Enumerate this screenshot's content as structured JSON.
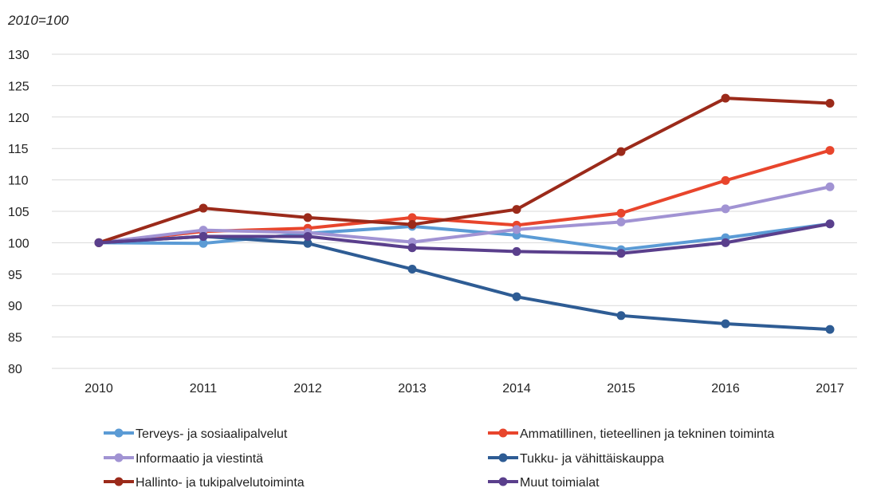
{
  "chart_data": {
    "type": "line",
    "unit_label": "2010=100",
    "x": [
      "2010",
      "2011",
      "2012",
      "2013",
      "2014",
      "2015",
      "2016",
      "2017"
    ],
    "ylim": [
      80,
      130
    ],
    "yticks": [
      80,
      85,
      90,
      95,
      100,
      105,
      110,
      115,
      120,
      125,
      130
    ],
    "grid": "horizontal",
    "legend_position": "bottom",
    "series": [
      {
        "name": "Terveys- ja sosiaalipalvelut",
        "color": "#5B9BD5",
        "values": [
          100,
          99.9,
          101.5,
          102.6,
          101.2,
          98.9,
          100.8,
          103.0
        ]
      },
      {
        "name": "Ammatillinen, tieteellinen ja tekninen toiminta",
        "color": "#E8452C",
        "values": [
          100,
          101.8,
          102.3,
          104.0,
          102.8,
          104.7,
          109.9,
          114.7
        ]
      },
      {
        "name": "Informaatio ja viestintä",
        "color": "#A193D3",
        "values": [
          100,
          102.0,
          101.6,
          100.1,
          102.1,
          103.3,
          105.4,
          108.9
        ]
      },
      {
        "name": "Tukku- ja vähittäiskauppa",
        "color": "#2E5C94",
        "values": [
          100,
          101.0,
          99.9,
          95.8,
          91.4,
          88.4,
          87.1,
          86.2
        ]
      },
      {
        "name": "Hallinto- ja tukipalvelutoiminta",
        "color": "#9B2A1A",
        "values": [
          100,
          105.5,
          104.0,
          102.9,
          105.3,
          114.5,
          123.0,
          122.2
        ]
      },
      {
        "name": "Muut toimialat",
        "color": "#5A3F8C",
        "values": [
          100,
          101.0,
          101.0,
          99.2,
          98.6,
          98.3,
          100.0,
          103.0
        ]
      }
    ]
  }
}
